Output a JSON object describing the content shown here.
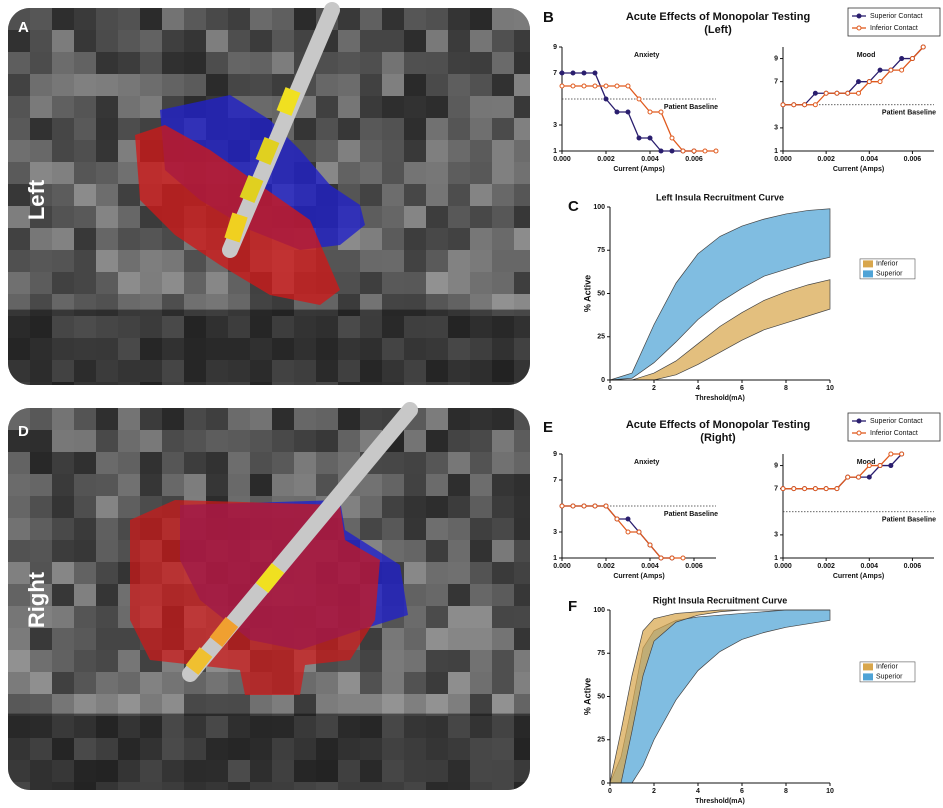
{
  "panels": [
    {
      "letter": "A",
      "side": "Left"
    },
    {
      "letter": "D",
      "side": "Right"
    }
  ],
  "section_labels": [
    "B",
    "C",
    "E",
    "F"
  ],
  "group_titles": [
    [
      "Acute Effects of Monopolar Testing",
      "(Left)"
    ],
    [
      "Acute Effects of Monopolar Testing",
      "(Right)"
    ]
  ],
  "chart_data": [
    {
      "type": "line",
      "title": "Anxiety",
      "xlabel": "Current (Amps)",
      "x": [
        0,
        0.0005,
        0.001,
        0.0015,
        0.002,
        0.0025,
        0.003,
        0.0035,
        0.004,
        0.0045,
        0.005,
        0.0055,
        0.006,
        0.0065,
        0.007
      ],
      "xlim": [
        0,
        0.007
      ],
      "xticks": [
        {
          "value": 0,
          "label": "0.000"
        },
        0.002,
        0.004,
        0.006
      ],
      "ylim": [
        1,
        9
      ],
      "yticks": [
        1,
        3,
        7,
        9
      ],
      "baseline": {
        "value": 5,
        "label": "Patient Baseline"
      },
      "series": [
        {
          "name": "Superior Contact",
          "color": "#2a1e6e",
          "marker": "filled",
          "values": [
            7,
            7,
            7,
            7,
            5,
            4,
            4,
            2,
            2,
            1,
            1,
            1,
            1,
            null,
            null
          ]
        },
        {
          "name": "Inferior Contact",
          "color": "#e05a1e",
          "marker": "hollow",
          "values": [
            6,
            6,
            6,
            6,
            6,
            6,
            6,
            5,
            4,
            4,
            2,
            1,
            1,
            1,
            1
          ]
        }
      ]
    },
    {
      "type": "line",
      "title": "Mood",
      "xlabel": "Current (Amps)",
      "x": [
        0,
        0.0005,
        0.001,
        0.0015,
        0.002,
        0.0025,
        0.003,
        0.0035,
        0.004,
        0.0045,
        0.005,
        0.0055,
        0.006,
        0.0065
      ],
      "xlim": [
        0,
        0.007
      ],
      "xticks": [
        {
          "value": 0,
          "label": "0.000"
        },
        0.002,
        0.004,
        0.006
      ],
      "ylim": [
        1,
        10
      ],
      "yticks": [
        1,
        3,
        7,
        9
      ],
      "baseline": {
        "value": 5,
        "label": "Patient Baseline"
      },
      "series": [
        {
          "color": "#2a1e6e",
          "marker": "filled",
          "values": [
            5,
            5,
            5,
            6,
            6,
            6,
            6,
            7,
            7,
            8,
            8,
            9,
            9,
            10
          ]
        },
        {
          "color": "#e05a1e",
          "marker": "hollow",
          "values": [
            5,
            5,
            5,
            5,
            6,
            6,
            6,
            6,
            7,
            7,
            8,
            8,
            9,
            10
          ]
        }
      ]
    },
    {
      "type": "area",
      "title": "Left Insula Recruitment Curve",
      "xlabel": "Threshold(mA)",
      "ylabel": "% Active",
      "x": [
        0,
        1,
        2,
        3,
        4,
        5,
        6,
        7,
        8,
        9,
        10
      ],
      "xlim": [
        0,
        10
      ],
      "xticks": [
        0,
        2,
        4,
        6,
        8,
        10
      ],
      "ylim": [
        0,
        100
      ],
      "yticks": [
        0,
        25,
        50,
        75,
        100
      ],
      "series": [
        {
          "name": "Superior",
          "color": "#4fa3d6",
          "upper": [
            0,
            4,
            32,
            56,
            73,
            83,
            89,
            93,
            96,
            98,
            99
          ],
          "lower": [
            0,
            1,
            10,
            22,
            35,
            45,
            53,
            60,
            64,
            68,
            71
          ]
        },
        {
          "name": "Inferior",
          "color": "#d8a64c",
          "upper": [
            0,
            0,
            4,
            11,
            21,
            31,
            39,
            46,
            51,
            55,
            58
          ],
          "lower": [
            0,
            0,
            0,
            3,
            9,
            16,
            23,
            29,
            33,
            37,
            41
          ]
        }
      ]
    },
    {
      "type": "line",
      "title": "Anxiety",
      "xlabel": "Current (Amps)",
      "x": [
        0,
        0.0005,
        0.001,
        0.0015,
        0.002,
        0.0025,
        0.003,
        0.0035,
        0.004,
        0.0045,
        0.005,
        0.0055
      ],
      "xlim": [
        0,
        0.007
      ],
      "xticks": [
        {
          "value": 0,
          "label": "0.000"
        },
        0.002,
        0.004,
        0.006
      ],
      "ylim": [
        1,
        9
      ],
      "yticks": [
        1,
        3,
        7,
        9
      ],
      "baseline": {
        "value": 5,
        "label": "Patient Baseline"
      },
      "series": [
        {
          "name": "Superior Contact",
          "color": "#2a1e6e",
          "marker": "filled",
          "values": [
            5,
            5,
            5,
            5,
            5,
            4,
            4,
            3,
            2,
            1,
            1,
            null
          ]
        },
        {
          "name": "Inferior Contact",
          "color": "#e05a1e",
          "marker": "hollow",
          "values": [
            5,
            5,
            5,
            5,
            5,
            4,
            3,
            3,
            2,
            1,
            1,
            1
          ]
        }
      ]
    },
    {
      "type": "line",
      "title": "Mood",
      "xlabel": "Current (Amps)",
      "x": [
        0,
        0.0005,
        0.001,
        0.0015,
        0.002,
        0.0025,
        0.003,
        0.0035,
        0.004,
        0.0045,
        0.005,
        0.0055
      ],
      "xlim": [
        0,
        0.007
      ],
      "xticks": [
        {
          "value": 0,
          "label": "0.000"
        },
        0.002,
        0.004,
        0.006
      ],
      "ylim": [
        1,
        10
      ],
      "yticks": [
        1,
        3,
        7,
        9
      ],
      "baseline": {
        "value": 5,
        "label": "Patient Baseline"
      },
      "series": [
        {
          "color": "#2a1e6e",
          "marker": "filled",
          "values": [
            7,
            7,
            7,
            7,
            7,
            7,
            8,
            8,
            8,
            9,
            9,
            10
          ]
        },
        {
          "color": "#e05a1e",
          "marker": "hollow",
          "values": [
            7,
            7,
            7,
            7,
            7,
            7,
            8,
            8,
            9,
            9,
            10,
            10
          ]
        }
      ]
    },
    {
      "type": "area",
      "title": "Right Insula Recruitment Curve",
      "xlabel": "Threshold(mA)",
      "ylabel": "% Active",
      "x": [
        0,
        0.5,
        1,
        1.5,
        2,
        3,
        4,
        5,
        6,
        7,
        8,
        9,
        10
      ],
      "xlim": [
        0,
        10
      ],
      "xticks": [
        0,
        2,
        4,
        6,
        8,
        10
      ],
      "ylim": [
        0,
        100
      ],
      "yticks": [
        0,
        25,
        50,
        75,
        100
      ],
      "series": [
        {
          "name": "Superior",
          "color": "#4fa3d6",
          "upper": [
            0,
            15,
            45,
            78,
            88,
            94,
            96,
            97,
            98,
            99,
            100,
            100,
            100
          ],
          "lower": [
            0,
            0,
            0,
            10,
            25,
            48,
            65,
            76,
            83,
            87,
            90,
            92,
            94
          ]
        },
        {
          "name": "Inferior",
          "color": "#d8a64c",
          "upper": [
            0,
            30,
            62,
            88,
            95,
            98,
            99,
            100,
            100,
            100,
            100,
            100,
            100
          ],
          "lower": [
            0,
            0,
            30,
            62,
            82,
            93,
            97,
            99,
            100,
            100,
            100,
            100,
            100
          ]
        }
      ]
    }
  ]
}
